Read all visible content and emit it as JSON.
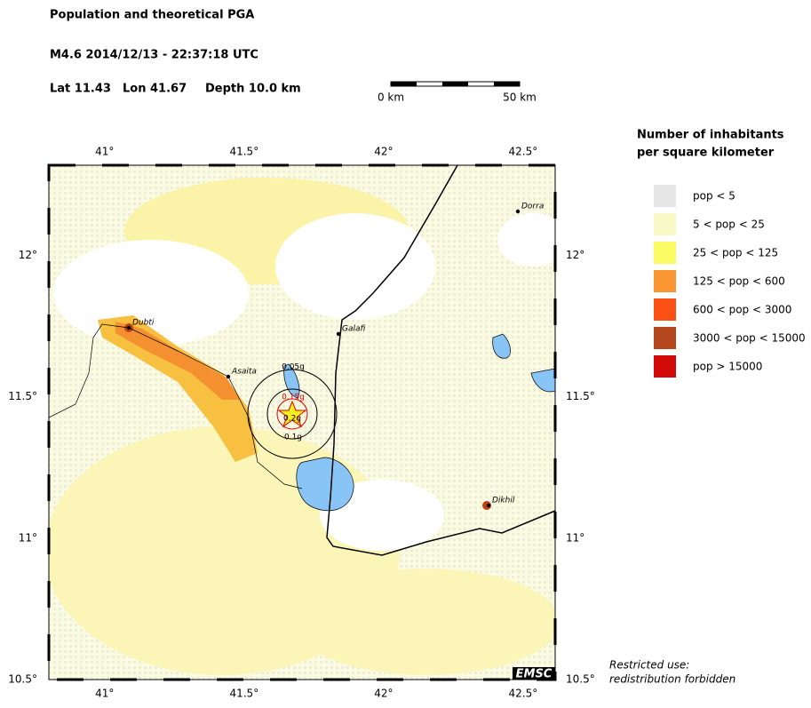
{
  "header": {
    "title": "Population and theoretical PGA",
    "event": "M4.6  2014/12/13 - 22:37:18 UTC",
    "lat": "Lat 11.43",
    "lon": "Lon  41.67",
    "depth": "Depth  10.0 km"
  },
  "scale_bar": {
    "start": "0 km",
    "end": "50 km"
  },
  "map": {
    "lon_ticks": [
      {
        "value": 41,
        "label": "41°"
      },
      {
        "value": 41.5,
        "label": "41.5°"
      },
      {
        "value": 42,
        "label": "42°"
      },
      {
        "value": 42.5,
        "label": "42.5°"
      }
    ],
    "lat_ticks": [
      {
        "value": 12,
        "label": "12°"
      },
      {
        "value": 11.5,
        "label": "11.5°"
      },
      {
        "value": 11,
        "label": "11°"
      },
      {
        "value": 10.5,
        "label": "10.5°"
      }
    ],
    "cities": [
      "Dubti",
      "Asaita",
      "Galafi",
      "Dorra",
      "Dikhil"
    ],
    "pga_labels": [
      "0.05g",
      "0.15g",
      "0.2g",
      "0.1g"
    ],
    "logo": "EMSC"
  },
  "legend": {
    "title": [
      "Number of inhabitants",
      "per square kilometer"
    ],
    "items": [
      {
        "label": "pop < 5",
        "color": "#e6e6e6"
      },
      {
        "label": "5 < pop < 25",
        "color": "#fafac8"
      },
      {
        "label": "25 < pop < 125",
        "color": "#fafa64"
      },
      {
        "label": "125 < pop < 600",
        "color": "#fa9632"
      },
      {
        "label": "600 < pop < 3000",
        "color": "#fa5014"
      },
      {
        "label": "3000 < pop < 15000",
        "color": "#b4461e"
      },
      {
        "label": "pop > 15000",
        "color": "#d20a0a"
      }
    ]
  },
  "footer": [
    "Restricted use:",
    "redistribution forbidden"
  ]
}
